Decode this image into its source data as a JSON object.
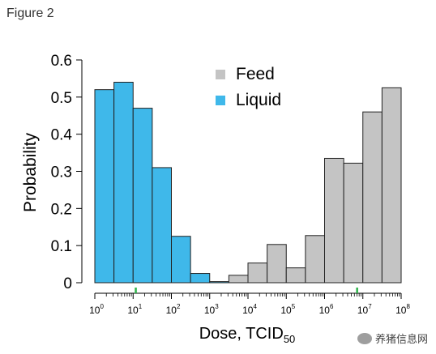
{
  "figure_label": "Figure 2",
  "watermark": "养猪信息网",
  "colors": {
    "liquid": "#3fb8ea",
    "feed": "#c4c4c4",
    "marker": "#2db34a",
    "stroke": "#222222"
  },
  "chart_data": {
    "type": "bar",
    "title": "",
    "xlabel": "Dose, TCID",
    "xlabel_sub": "50",
    "ylabel": "Probability",
    "x_scale": "log10",
    "xlim": [
      1,
      100000000
    ],
    "ylim": [
      0,
      0.6
    ],
    "yticks": [
      "0",
      "0.1",
      "0.2",
      "0.3",
      "0.4",
      "0.5",
      "0.6"
    ],
    "xtick_exponents": [
      "0",
      "1",
      "2",
      "3",
      "4",
      "5",
      "6",
      "7",
      "8"
    ],
    "legend_position": "top-center",
    "bin_edges_log10": [
      0,
      0.5,
      1,
      1.5,
      2,
      2.5,
      3,
      3.5,
      4,
      4.5,
      5,
      5.5,
      6,
      6.5,
      7,
      7.5,
      8
    ],
    "series": [
      {
        "name": "Liquid",
        "color": "#3fb8ea",
        "values": [
          0.52,
          0.54,
          0.47,
          0.31,
          0.125,
          0.025,
          0.003,
          0,
          0,
          0,
          0,
          0,
          0,
          0,
          0,
          0
        ]
      },
      {
        "name": "Feed",
        "color": "#c4c4c4",
        "values": [
          0,
          0,
          0,
          0,
          0,
          0,
          0,
          0.02,
          0.053,
          0.103,
          0.04,
          0.127,
          0.335,
          0.322,
          0.46,
          0.525
        ]
      }
    ],
    "markers_log10": [
      1.07,
      6.85
    ]
  }
}
